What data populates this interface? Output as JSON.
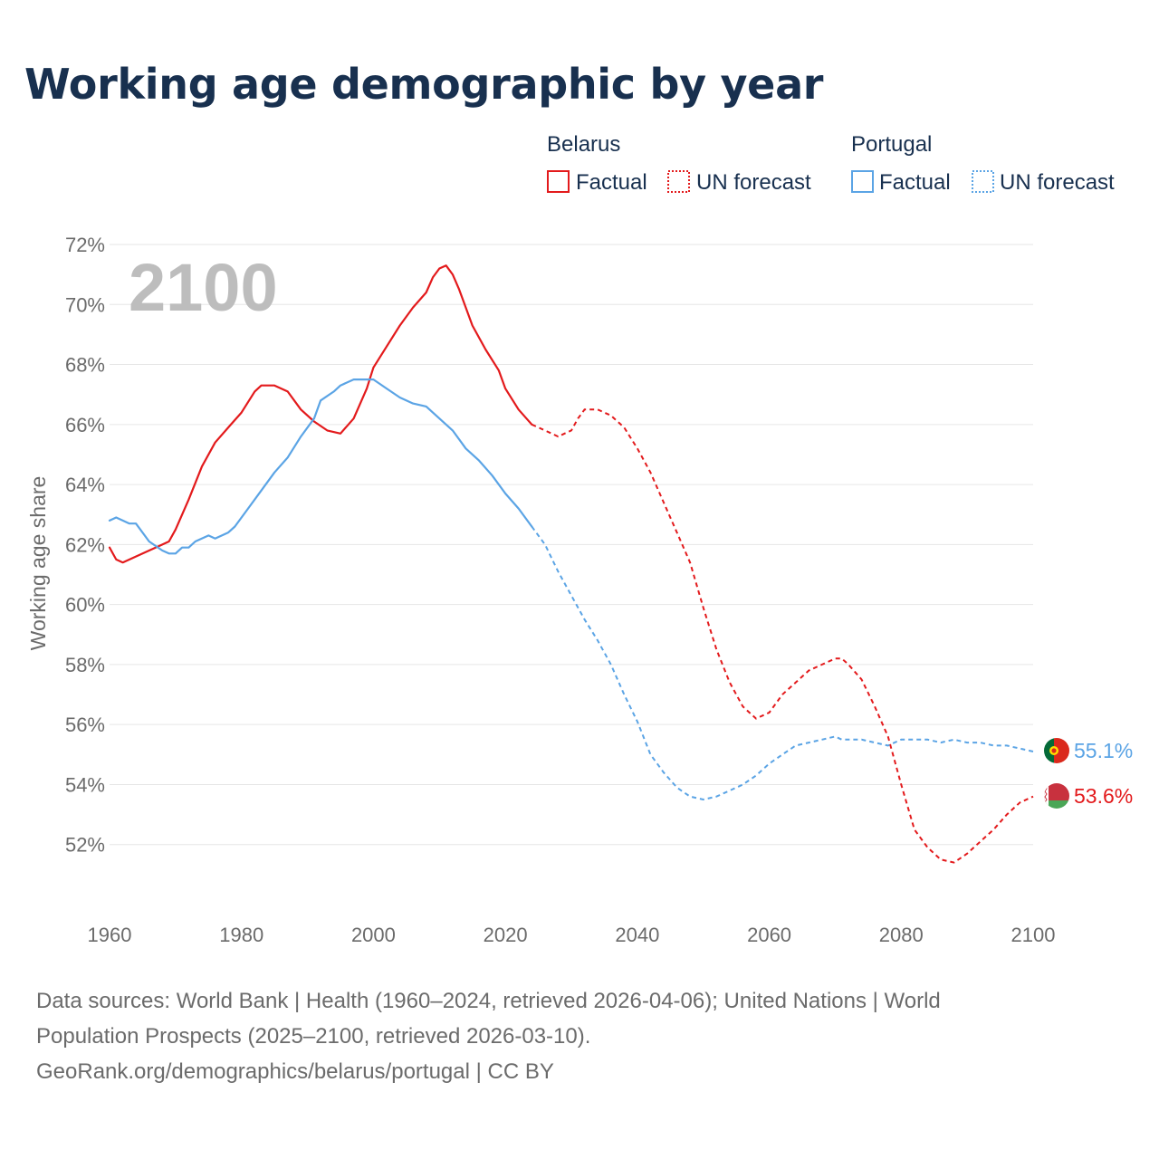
{
  "title": "Working age demographic by year",
  "legend": {
    "groups": [
      {
        "country": "Belarus",
        "color": "#e31a1c",
        "factual": "Factual",
        "forecast": "UN forecast"
      },
      {
        "country": "Portugal",
        "color": "#5ba4e5",
        "factual": "Factual",
        "forecast": "UN forecast"
      }
    ]
  },
  "year_label": "2100",
  "end_labels": {
    "belarus": "53.6%",
    "portugal": "55.1%"
  },
  "sources": {
    "line1": "Data sources: World Bank | Health (1960–2024, retrieved 2026-04-06); United Nations | World",
    "line2": "Population Prospects (2025–2100, retrieved 2026-03-10).",
    "line3": "GeoRank.org/demographics/belarus/portugal | CC BY"
  },
  "chart_data": {
    "type": "line",
    "title": "Working age demographic by year",
    "xlabel": "",
    "ylabel": "Working age share",
    "xlim": [
      1960,
      2100
    ],
    "ylim": [
      50,
      72
    ],
    "x_ticks": [
      1960,
      1980,
      2000,
      2020,
      2040,
      2060,
      2080,
      2100
    ],
    "x_tick_labels": [
      "1960",
      "1980",
      "2000",
      "2020",
      "2040",
      "2060",
      "2080",
      "2100"
    ],
    "y_ticks": [
      52,
      54,
      56,
      58,
      60,
      62,
      64,
      66,
      68,
      70,
      72
    ],
    "y_tick_labels": [
      "52%",
      "54%",
      "56%",
      "58%",
      "60%",
      "62%",
      "64%",
      "66%",
      "68%",
      "70%",
      "72%"
    ],
    "factual_range": [
      1960,
      2024
    ],
    "forecast_range": [
      2024,
      2100
    ],
    "series": [
      {
        "name": "Belarus",
        "color": "#e31a1c",
        "points": [
          [
            1960,
            61.9
          ],
          [
            1961,
            61.5
          ],
          [
            1962,
            61.4
          ],
          [
            1964,
            61.6
          ],
          [
            1966,
            61.8
          ],
          [
            1968,
            62.0
          ],
          [
            1969,
            62.1
          ],
          [
            1970,
            62.5
          ],
          [
            1972,
            63.5
          ],
          [
            1974,
            64.6
          ],
          [
            1976,
            65.4
          ],
          [
            1978,
            65.9
          ],
          [
            1980,
            66.4
          ],
          [
            1982,
            67.1
          ],
          [
            1983,
            67.3
          ],
          [
            1985,
            67.3
          ],
          [
            1987,
            67.1
          ],
          [
            1989,
            66.5
          ],
          [
            1991,
            66.1
          ],
          [
            1993,
            65.8
          ],
          [
            1995,
            65.7
          ],
          [
            1997,
            66.2
          ],
          [
            1999,
            67.2
          ],
          [
            2000,
            67.9
          ],
          [
            2002,
            68.6
          ],
          [
            2004,
            69.3
          ],
          [
            2006,
            69.9
          ],
          [
            2008,
            70.4
          ],
          [
            2009,
            70.9
          ],
          [
            2010,
            71.2
          ],
          [
            2011,
            71.3
          ],
          [
            2012,
            71.0
          ],
          [
            2013,
            70.5
          ],
          [
            2014,
            69.9
          ],
          [
            2015,
            69.3
          ],
          [
            2017,
            68.5
          ],
          [
            2019,
            67.8
          ],
          [
            2020,
            67.2
          ],
          [
            2022,
            66.5
          ],
          [
            2024,
            66.0
          ],
          [
            2026,
            65.8
          ],
          [
            2028,
            65.6
          ],
          [
            2030,
            65.8
          ],
          [
            2031,
            66.2
          ],
          [
            2032,
            66.5
          ],
          [
            2034,
            66.5
          ],
          [
            2036,
            66.3
          ],
          [
            2038,
            65.9
          ],
          [
            2040,
            65.2
          ],
          [
            2042,
            64.4
          ],
          [
            2044,
            63.4
          ],
          [
            2046,
            62.4
          ],
          [
            2048,
            61.4
          ],
          [
            2050,
            59.9
          ],
          [
            2052,
            58.5
          ],
          [
            2054,
            57.4
          ],
          [
            2056,
            56.6
          ],
          [
            2058,
            56.2
          ],
          [
            2060,
            56.4
          ],
          [
            2062,
            57.0
          ],
          [
            2064,
            57.4
          ],
          [
            2066,
            57.8
          ],
          [
            2068,
            58.0
          ],
          [
            2070,
            58.2
          ],
          [
            2071,
            58.2
          ],
          [
            2072,
            58.0
          ],
          [
            2074,
            57.5
          ],
          [
            2076,
            56.6
          ],
          [
            2078,
            55.6
          ],
          [
            2080,
            54.0
          ],
          [
            2082,
            52.5
          ],
          [
            2084,
            51.9
          ],
          [
            2086,
            51.5
          ],
          [
            2088,
            51.4
          ],
          [
            2090,
            51.7
          ],
          [
            2092,
            52.1
          ],
          [
            2094,
            52.5
          ],
          [
            2096,
            53.0
          ],
          [
            2098,
            53.4
          ],
          [
            2100,
            53.6
          ]
        ]
      },
      {
        "name": "Portugal",
        "color": "#5ba4e5",
        "points": [
          [
            1960,
            62.8
          ],
          [
            1961,
            62.9
          ],
          [
            1963,
            62.7
          ],
          [
            1964,
            62.7
          ],
          [
            1966,
            62.1
          ],
          [
            1968,
            61.8
          ],
          [
            1969,
            61.7
          ],
          [
            1970,
            61.7
          ],
          [
            1971,
            61.9
          ],
          [
            1972,
            61.9
          ],
          [
            1973,
            62.1
          ],
          [
            1975,
            62.3
          ],
          [
            1976,
            62.2
          ],
          [
            1978,
            62.4
          ],
          [
            1979,
            62.6
          ],
          [
            1981,
            63.2
          ],
          [
            1983,
            63.8
          ],
          [
            1985,
            64.4
          ],
          [
            1987,
            64.9
          ],
          [
            1989,
            65.6
          ],
          [
            1991,
            66.2
          ],
          [
            1992,
            66.8
          ],
          [
            1994,
            67.1
          ],
          [
            1995,
            67.3
          ],
          [
            1997,
            67.5
          ],
          [
            1999,
            67.5
          ],
          [
            2000,
            67.5
          ],
          [
            2002,
            67.2
          ],
          [
            2004,
            66.9
          ],
          [
            2006,
            66.7
          ],
          [
            2008,
            66.6
          ],
          [
            2010,
            66.2
          ],
          [
            2012,
            65.8
          ],
          [
            2014,
            65.2
          ],
          [
            2016,
            64.8
          ],
          [
            2018,
            64.3
          ],
          [
            2020,
            63.7
          ],
          [
            2022,
            63.2
          ],
          [
            2024,
            62.6
          ],
          [
            2026,
            62.0
          ],
          [
            2028,
            61.1
          ],
          [
            2030,
            60.3
          ],
          [
            2032,
            59.5
          ],
          [
            2034,
            58.8
          ],
          [
            2036,
            58.0
          ],
          [
            2038,
            57.0
          ],
          [
            2040,
            56.1
          ],
          [
            2042,
            55.0
          ],
          [
            2044,
            54.4
          ],
          [
            2046,
            53.9
          ],
          [
            2048,
            53.6
          ],
          [
            2050,
            53.5
          ],
          [
            2052,
            53.6
          ],
          [
            2054,
            53.8
          ],
          [
            2056,
            54.0
          ],
          [
            2058,
            54.3
          ],
          [
            2060,
            54.7
          ],
          [
            2062,
            55.0
          ],
          [
            2064,
            55.3
          ],
          [
            2066,
            55.4
          ],
          [
            2068,
            55.5
          ],
          [
            2070,
            55.6
          ],
          [
            2071,
            55.5
          ],
          [
            2074,
            55.5
          ],
          [
            2076,
            55.4
          ],
          [
            2078,
            55.3
          ],
          [
            2080,
            55.5
          ],
          [
            2084,
            55.5
          ],
          [
            2086,
            55.4
          ],
          [
            2088,
            55.5
          ],
          [
            2090,
            55.4
          ],
          [
            2092,
            55.4
          ],
          [
            2094,
            55.3
          ],
          [
            2096,
            55.3
          ],
          [
            2098,
            55.2
          ],
          [
            2100,
            55.1
          ]
        ]
      }
    ]
  }
}
